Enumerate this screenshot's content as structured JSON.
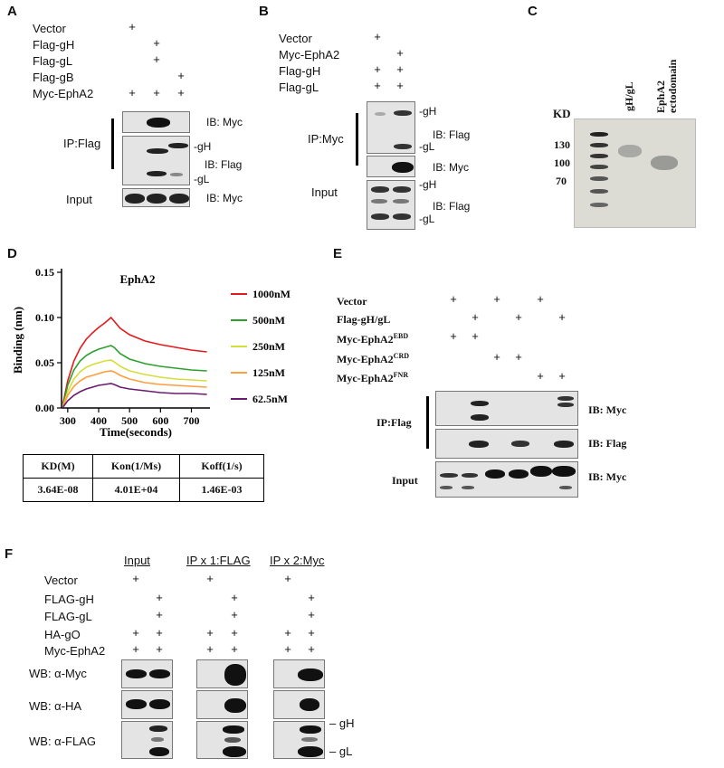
{
  "panels": {
    "A": "A",
    "B": "B",
    "C": "C",
    "D": "D",
    "E": "E",
    "F": "F"
  },
  "panelA": {
    "rows": [
      "Vector",
      "Flag-gH",
      "Flag-gL",
      "Flag-gB",
      "Myc-EphA2"
    ],
    "ip": "IP:Flag",
    "input": "Input",
    "ib_myc": "IB: Myc",
    "ib_flag": "IB: Flag",
    "gH": "gH",
    "gL": "gL",
    "ib_myc2": "IB: Myc"
  },
  "panelB": {
    "rows": [
      "Vector",
      "Myc-EphA2",
      "Flag-gH",
      "Flag-gL"
    ],
    "ip": "IP:Myc",
    "input": "Input",
    "gH": "gH",
    "ib_flag": "IB: Flag",
    "gL": "gL",
    "ib_myc": "IB: Myc",
    "gH2": "gH",
    "ib_flag2": "IB: Flag",
    "gL2": "gL"
  },
  "panelC": {
    "kd": "KD",
    "lane1": "gH/gL",
    "lane2a": "EphA2",
    "lane2b": "ectodomain",
    "markers": [
      "130",
      "100",
      "70"
    ]
  },
  "panelD": {
    "chart_data": {
      "type": "line",
      "title": "EphA2",
      "xlabel": "Time(seconds)",
      "ylabel": "Binding (nm)",
      "xlim": [
        280,
        760
      ],
      "ylim": [
        0.0,
        0.15
      ],
      "xticks": [
        300,
        400,
        500,
        600,
        700
      ],
      "yticks": [
        0.0,
        0.05,
        0.1,
        0.15
      ],
      "grid": false,
      "legend_position": "right",
      "series": [
        {
          "name": "1000nM",
          "color": "#e41a1c",
          "x": [
            285,
            300,
            320,
            340,
            360,
            380,
            400,
            420,
            440,
            450,
            470,
            500,
            550,
            600,
            650,
            700,
            750
          ],
          "y": [
            0.005,
            0.03,
            0.052,
            0.066,
            0.076,
            0.083,
            0.089,
            0.094,
            0.1,
            0.096,
            0.088,
            0.081,
            0.074,
            0.07,
            0.067,
            0.064,
            0.062
          ]
        },
        {
          "name": "500nM",
          "color": "#2ca02c",
          "x": [
            285,
            300,
            320,
            340,
            360,
            380,
            400,
            420,
            440,
            450,
            470,
            500,
            550,
            600,
            650,
            700,
            750
          ],
          "y": [
            0.003,
            0.025,
            0.042,
            0.052,
            0.058,
            0.062,
            0.065,
            0.067,
            0.069,
            0.067,
            0.06,
            0.054,
            0.049,
            0.046,
            0.044,
            0.042,
            0.041
          ]
        },
        {
          "name": "250nM",
          "color": "#d4de3a",
          "x": [
            285,
            300,
            320,
            340,
            360,
            380,
            400,
            420,
            440,
            450,
            470,
            500,
            550,
            600,
            650,
            700,
            750
          ],
          "y": [
            0.002,
            0.018,
            0.032,
            0.04,
            0.045,
            0.048,
            0.05,
            0.052,
            0.053,
            0.051,
            0.046,
            0.041,
            0.037,
            0.034,
            0.032,
            0.031,
            0.03
          ]
        },
        {
          "name": "125nM",
          "color": "#ff9e3d",
          "x": [
            285,
            300,
            320,
            340,
            360,
            380,
            400,
            420,
            440,
            450,
            470,
            500,
            550,
            600,
            650,
            700,
            750
          ],
          "y": [
            0.002,
            0.014,
            0.024,
            0.03,
            0.034,
            0.036,
            0.038,
            0.04,
            0.041,
            0.04,
            0.036,
            0.032,
            0.028,
            0.026,
            0.025,
            0.024,
            0.023
          ]
        },
        {
          "name": "62.5nM",
          "color": "#6a1b6f",
          "x": [
            285,
            300,
            320,
            340,
            360,
            380,
            400,
            420,
            440,
            450,
            470,
            500,
            550,
            600,
            650,
            700,
            750
          ],
          "y": [
            0.001,
            0.008,
            0.014,
            0.018,
            0.021,
            0.023,
            0.025,
            0.026,
            0.027,
            0.026,
            0.023,
            0.021,
            0.019,
            0.017,
            0.016,
            0.016,
            0.015
          ]
        }
      ]
    },
    "table": {
      "headers": [
        "KD(M)",
        "Kon(1/Ms)",
        "Koff(1/s)"
      ],
      "values": [
        "3.64E-08",
        "4.01E+04",
        "1.46E-03"
      ]
    }
  },
  "panelE": {
    "rows": [
      {
        "main": "Vector",
        "sup": ""
      },
      {
        "main": "Flag-gH/gL",
        "sup": ""
      },
      {
        "main": "Myc-EphA2",
        "sup": "EBD"
      },
      {
        "main": "Myc-EphA2",
        "sup": "CRD"
      },
      {
        "main": "Myc-EphA2",
        "sup": "FNR"
      }
    ],
    "ip": "IP:Flag",
    "input": "Input",
    "ib1": "IB: Myc",
    "ib2": "IB: Flag",
    "ib3": "IB: Myc"
  },
  "panelF": {
    "groups": [
      "Input",
      "IP x 1:FLAG",
      "IP x 2:Myc"
    ],
    "rows": [
      "Vector",
      "FLAG-gH",
      "FLAG-gL",
      "HA-gO",
      "Myc-EphA2"
    ],
    "wb_myc_prefix": "WB: ",
    "wb_myc_sym": "α",
    "wb_myc_tail": "-Myc",
    "wb_ha_prefix": "WB: ",
    "wb_ha_sym": "α",
    "wb_ha_tail": "-HA",
    "wb_flag_prefix": "WB: ",
    "wb_flag_sym": "α",
    "wb_flag_tail": "-FLAG",
    "gH": "– gH",
    "gL": "– gL"
  },
  "plus": "+"
}
